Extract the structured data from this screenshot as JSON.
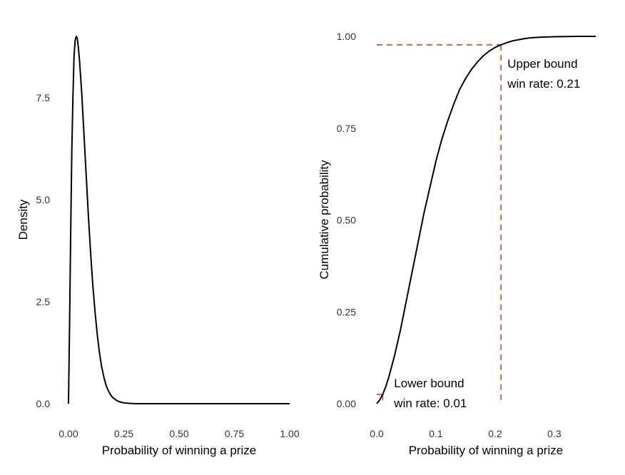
{
  "chart_data": [
    {
      "type": "line",
      "title": "",
      "xlabel": "Probability of winning a prize",
      "ylabel": "Density",
      "xlim": [
        0,
        1
      ],
      "ylim": [
        0,
        9
      ],
      "x_ticks": [
        0,
        0.25,
        0.5,
        0.75,
        1
      ],
      "x_tick_labels": [
        "0.00",
        "0.25",
        "0.50",
        "0.75",
        "1.00"
      ],
      "y_ticks": [
        0,
        2.5,
        5,
        7.5
      ],
      "y_tick_labels": [
        "0.0",
        "2.5",
        "5.0",
        "7.5"
      ],
      "grid": false,
      "series": [
        {
          "x": [
            0,
            0.005,
            0.01,
            0.015,
            0.02,
            0.025,
            0.03,
            0.035,
            0.04,
            0.045,
            0.05,
            0.06,
            0.07,
            0.08,
            0.09,
            0.1,
            0.11,
            0.12,
            0.13,
            0.14,
            0.15,
            0.16,
            0.17,
            0.18,
            0.19,
            0.2,
            0.22,
            0.24,
            0.26,
            0.28,
            0.3,
            0.33,
            0.36,
            0.4,
            0.5,
            0.6,
            0.7,
            0.8,
            0.9,
            1.0
          ],
          "y": [
            0,
            2.0,
            4.2,
            6.2,
            7.5,
            8.5,
            8.9,
            9.0,
            8.95,
            8.7,
            8.4,
            7.6,
            6.6,
            5.6,
            4.6,
            3.7,
            2.9,
            2.25,
            1.7,
            1.25,
            0.9,
            0.65,
            0.45,
            0.32,
            0.22,
            0.15,
            0.07,
            0.03,
            0.015,
            0.007,
            0.003,
            0.001,
            0,
            0,
            0,
            0,
            0,
            0,
            0,
            0
          ]
        }
      ]
    },
    {
      "type": "line",
      "title": "",
      "xlabel": "Probability of winning a prize",
      "ylabel": "Cumulative probability",
      "xlim": [
        0,
        0.37
      ],
      "ylim": [
        0,
        1
      ],
      "x_ticks": [
        0,
        0.1,
        0.2,
        0.3
      ],
      "x_tick_labels": [
        "0.0",
        "0.1",
        "0.2",
        "0.3"
      ],
      "y_ticks": [
        0,
        0.25,
        0.5,
        0.75,
        1
      ],
      "y_tick_labels": [
        "0.00",
        "0.25",
        "0.50",
        "0.75",
        "1.00"
      ],
      "grid": false,
      "series": [
        {
          "x": [
            0,
            0.005,
            0.01,
            0.015,
            0.02,
            0.03,
            0.04,
            0.05,
            0.06,
            0.07,
            0.08,
            0.09,
            0.1,
            0.11,
            0.12,
            0.13,
            0.14,
            0.15,
            0.16,
            0.17,
            0.18,
            0.19,
            0.2,
            0.21,
            0.22,
            0.23,
            0.24,
            0.25,
            0.26,
            0.28,
            0.3,
            0.32,
            0.34,
            0.37
          ],
          "y": [
            0,
            0.01,
            0.025,
            0.045,
            0.07,
            0.13,
            0.2,
            0.28,
            0.36,
            0.44,
            0.52,
            0.59,
            0.66,
            0.72,
            0.77,
            0.815,
            0.855,
            0.885,
            0.91,
            0.93,
            0.947,
            0.96,
            0.97,
            0.977,
            0.983,
            0.988,
            0.991,
            0.994,
            0.996,
            0.998,
            0.999,
            0.9995,
            1.0,
            1.0
          ]
        }
      ],
      "reference_lines": {
        "lower": {
          "x": 0.01,
          "y": 0.025
        },
        "upper": {
          "x": 0.21,
          "y": 0.977
        }
      },
      "annotations": {
        "upper_line1": "Upper bound",
        "upper_line2": "win rate: 0.21",
        "lower_line1": "Lower bound",
        "lower_line2": "win rate: 0.01"
      },
      "colors": {
        "curve": "#000000",
        "reference": "#d6604d"
      }
    }
  ]
}
